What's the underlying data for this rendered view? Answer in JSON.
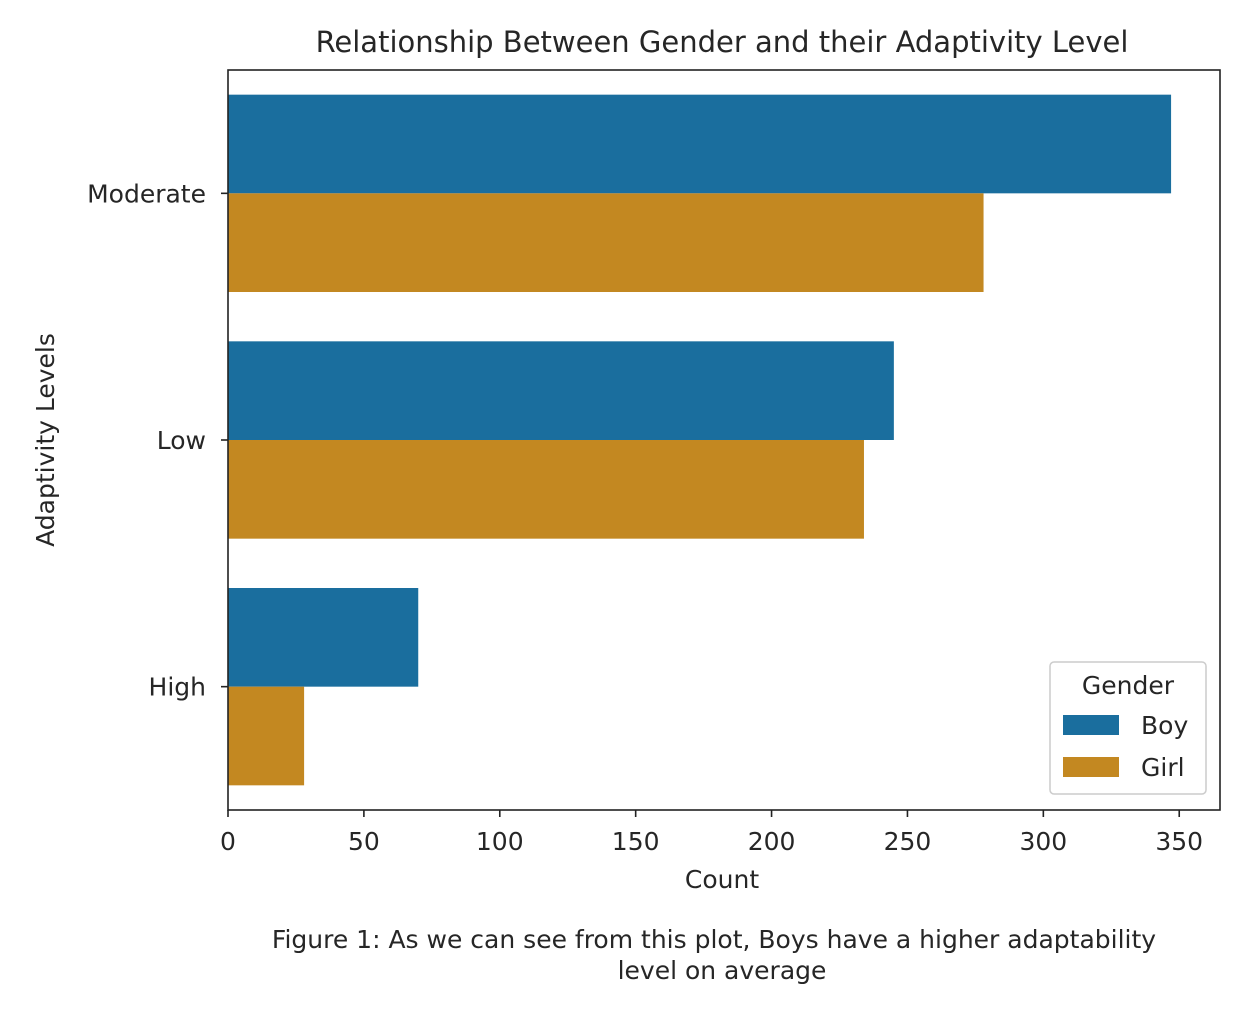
{
  "chart_data": {
    "type": "bar",
    "orientation": "horizontal",
    "title": "Relationship Between Gender and their Adaptivity Level",
    "xlabel": "Count",
    "ylabel": "Adaptivity Levels",
    "categories": [
      "Moderate",
      "Low",
      "High"
    ],
    "series": [
      {
        "name": "Boy",
        "color": "#1a6e9e",
        "values": [
          347,
          245,
          70
        ]
      },
      {
        "name": "Girl",
        "color": "#c38821",
        "values": [
          278,
          234,
          28
        ]
      }
    ],
    "xlim": [
      0,
      365
    ],
    "xticks": [
      0,
      50,
      100,
      150,
      200,
      250,
      300,
      350
    ],
    "legend": {
      "title": "Gender",
      "position": "bottom-right"
    },
    "grid": false
  },
  "caption": {
    "line1": "Figure 1: As we can see from this plot, Boys have a higher adaptability",
    "line2": "level on average"
  }
}
